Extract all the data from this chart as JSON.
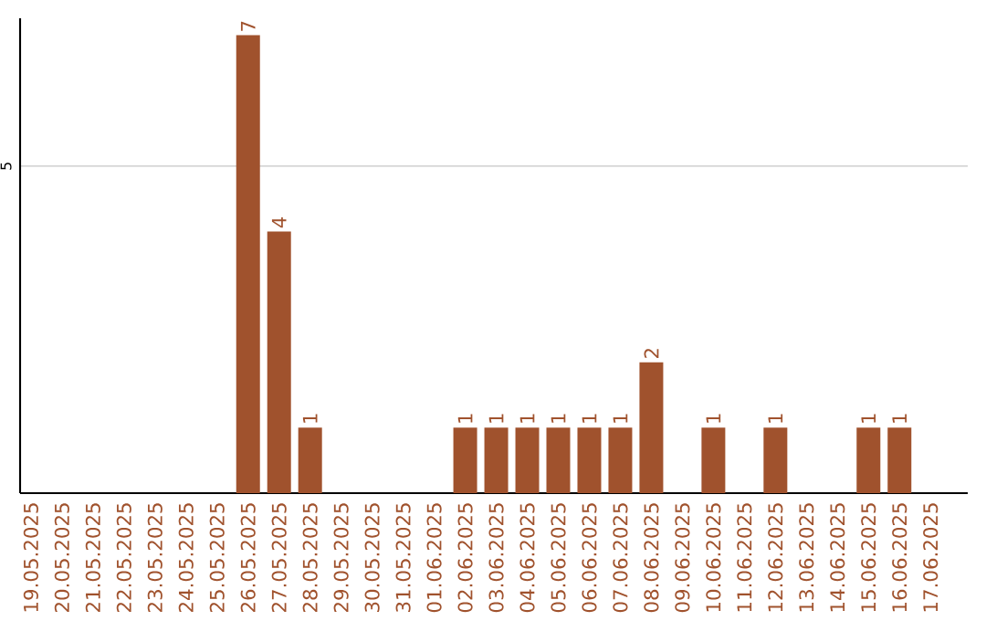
{
  "chart_data": {
    "type": "bar",
    "categories": [
      "19.05.2025",
      "20.05.2025",
      "21.05.2025",
      "22.05.2025",
      "23.05.2025",
      "24.05.2025",
      "25.05.2025",
      "26.05.2025",
      "27.05.2025",
      "28.05.2025",
      "29.05.2025",
      "30.05.2025",
      "31.05.2025",
      "01.06.2025",
      "02.06.2025",
      "03.06.2025",
      "04.06.2025",
      "05.06.2025",
      "06.06.2025",
      "07.06.2025",
      "08.06.2025",
      "09.06.2025",
      "10.06.2025",
      "11.06.2025",
      "12.06.2025",
      "13.06.2025",
      "14.06.2025",
      "15.06.2025",
      "16.06.2025",
      "17.06.2025"
    ],
    "values": [
      0,
      0,
      0,
      0,
      0,
      0,
      0,
      7,
      4,
      1,
      0,
      0,
      0,
      0,
      1,
      1,
      1,
      1,
      1,
      1,
      2,
      0,
      1,
      0,
      1,
      0,
      0,
      1,
      1,
      0
    ],
    "value_labels": [
      null,
      null,
      null,
      null,
      null,
      null,
      null,
      "7",
      "4",
      "1",
      null,
      null,
      null,
      null,
      "1",
      "1",
      "1",
      "1",
      "1",
      "1",
      "2",
      null,
      "1",
      null,
      "1",
      null,
      null,
      "1",
      "1",
      null
    ],
    "color": "#a0522d",
    "ylim": [
      0,
      7.26
    ],
    "yticks": [
      5
    ],
    "grid": "y"
  }
}
